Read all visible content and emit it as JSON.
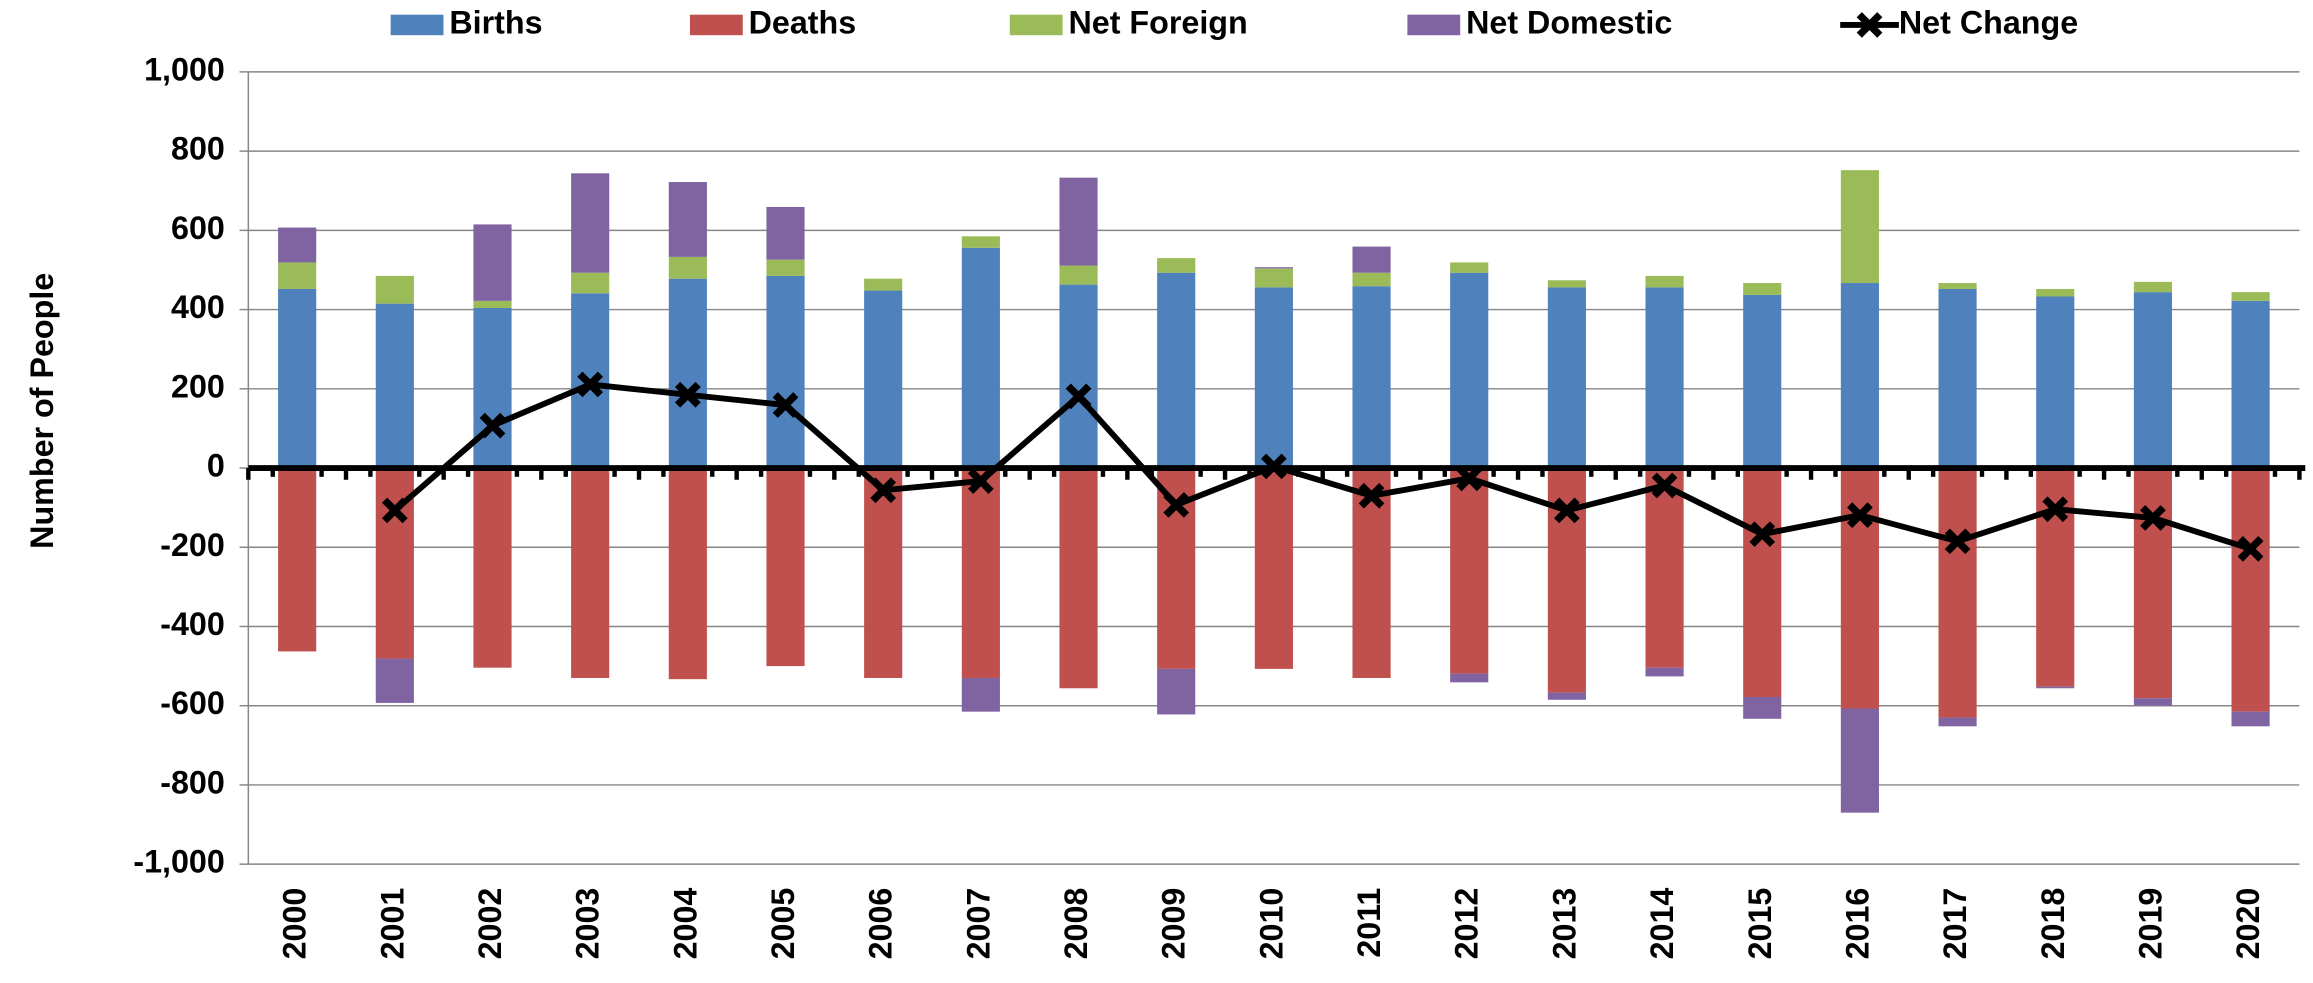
{
  "chart_data": {
    "type": "bar",
    "y_label": "Number of People",
    "categories": [
      "2000",
      "2001",
      "2002",
      "2003",
      "2004",
      "2005",
      "2006",
      "2007",
      "2008",
      "2009",
      "2010",
      "2011",
      "2012",
      "2013",
      "2014",
      "2015",
      "2016",
      "2017",
      "2018",
      "2019",
      "2020"
    ],
    "series": [
      {
        "name": "Births",
        "type": "bar",
        "color": "#4f81bd",
        "values": [
          452,
          415,
          404,
          441,
          478,
          485,
          448,
          556,
          463,
          493,
          456,
          459,
          493,
          456,
          456,
          437,
          467,
          452,
          433,
          444,
          422
        ]
      },
      {
        "name": "Deaths",
        "type": "bar",
        "color": "#c0504d",
        "values": [
          -463,
          -481,
          -504,
          -530,
          -533,
          -500,
          -530,
          -530,
          -556,
          -507,
          -507,
          -530,
          -519,
          -567,
          -504,
          -578,
          -607,
          -630,
          -552,
          -581,
          -615
        ]
      },
      {
        "name": "Net Foreign",
        "type": "bar",
        "color": "#9bbb59",
        "values": [
          67,
          70,
          18,
          52,
          55,
          41,
          30,
          29,
          48,
          37,
          48,
          34,
          26,
          18,
          29,
          30,
          285,
          15,
          19,
          26,
          22
        ]
      },
      {
        "name": "Net Domestic",
        "type": "bar",
        "color": "#8064a2",
        "values": [
          88,
          -112,
          193,
          251,
          189,
          133,
          0,
          -85,
          222,
          -115,
          3,
          66,
          -22,
          -18,
          -22,
          -55,
          -263,
          -22,
          -4,
          -19,
          -37
        ]
      },
      {
        "name": "Net Change",
        "type": "line",
        "color": "#000000",
        "values": [
          null,
          -107,
          107,
          211,
          185,
          159,
          -56,
          -33,
          181,
          -93,
          4,
          -70,
          -26,
          -107,
          -44,
          -167,
          -119,
          -185,
          -104,
          -126,
          -204
        ]
      }
    ],
    "ylim": [
      -1000,
      1000
    ],
    "yticks": [
      {
        "value": -1000,
        "label": "-1,000"
      },
      -800,
      -600,
      -400,
      -200,
      0,
      200,
      400,
      600,
      800,
      {
        "value": 1000,
        "label": "1,000"
      }
    ],
    "grid": true,
    "legend": "top"
  }
}
